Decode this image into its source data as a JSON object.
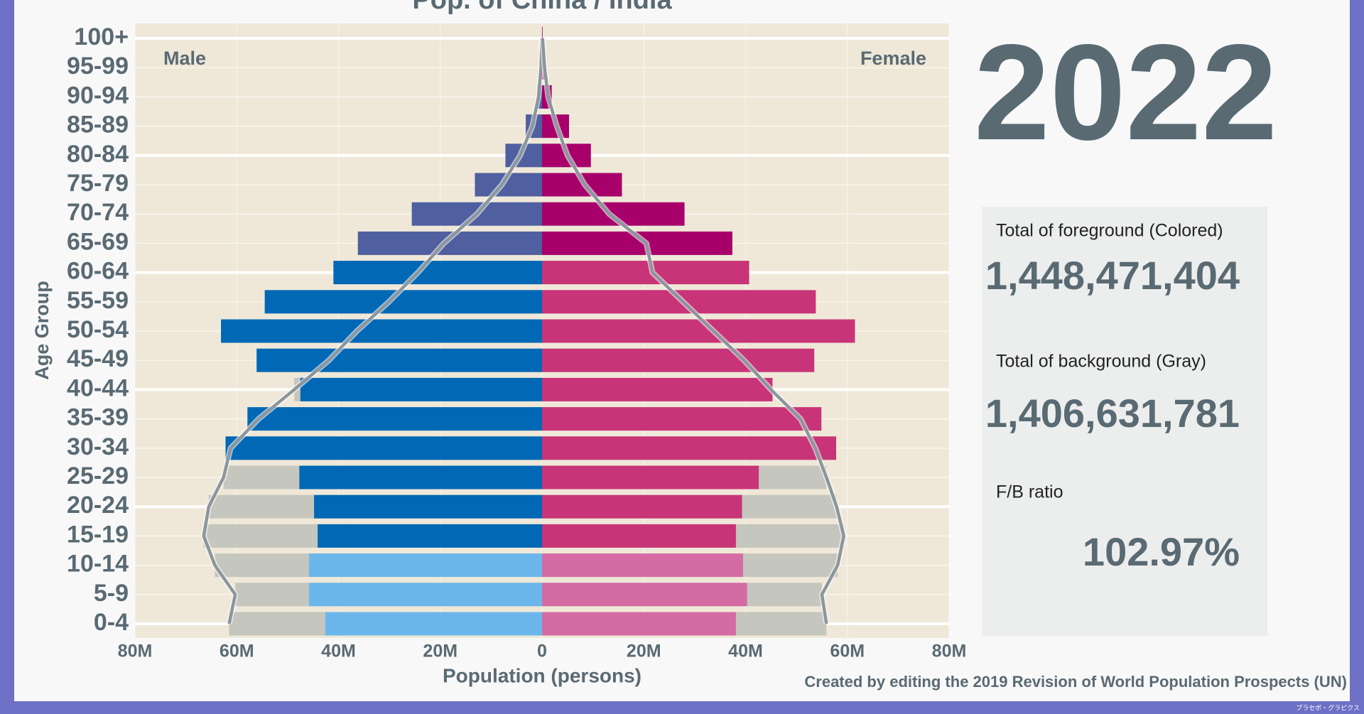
{
  "chart_data": {
    "type": "pyramid",
    "title": "Pop. of China / India",
    "categories": [
      "0-4",
      "5-9",
      "10-14",
      "15-19",
      "20-24",
      "25-29",
      "30-34",
      "35-39",
      "40-44",
      "45-49",
      "50-54",
      "55-59",
      "60-64",
      "65-69",
      "70-74",
      "75-79",
      "80-84",
      "85-89",
      "90-94",
      "95-99",
      "100+"
    ],
    "xlim": [
      -80000000,
      80000000
    ],
    "xticks": [
      {
        "value": -80000000,
        "label": "80M"
      },
      {
        "value": -60000000,
        "label": "60M"
      },
      {
        "value": -40000000,
        "label": "40M"
      },
      {
        "value": -20000000,
        "label": "20M"
      },
      0,
      {
        "value": 20000000,
        "label": "20M"
      },
      {
        "value": 40000000,
        "label": "40M"
      },
      {
        "value": 60000000,
        "label": "60M"
      },
      {
        "value": 80000000,
        "label": "80M"
      }
    ],
    "x_label": "Population (persons)",
    "y_label": "Age Group",
    "background_color": "#c5c6be",
    "outline_color": "#8c969c",
    "series": [
      {
        "name": "Male",
        "side": "left",
        "colors": [
          "#6bb7ec",
          "#6bb7ec",
          "#6bb7ec",
          "#0068b5",
          "#0068b5",
          "#0068b5",
          "#0068b5",
          "#0068b5",
          "#0068b5",
          "#0068b5",
          "#0068b5",
          "#0068b5",
          "#0068b5",
          "#4f5f9f",
          "#4f5f9f",
          "#4f5f9f",
          "#4f5f9f",
          "#4f5f9f",
          "#4f5f9f",
          "#4f5f9f",
          "#4f5f9f"
        ],
        "values": [
          42600000,
          45800000,
          45800000,
          44100000,
          44800000,
          47700000,
          62200000,
          57900000,
          47500000,
          56100000,
          63100000,
          54500000,
          41000000,
          36200000,
          25600000,
          13200000,
          7200000,
          3200000,
          900000,
          200000,
          10000
        ],
        "background_values": [
          61500000,
          60300000,
          64300000,
          66500000,
          65500000,
          62600000,
          61200000,
          55700000,
          48700000,
          41900000,
          36400000,
          30100000,
          24400000,
          19300000,
          12800000,
          7900000,
          4300000,
          1900000,
          700000,
          200000,
          30000
        ]
      },
      {
        "name": "Female",
        "side": "right",
        "colors": [
          "#d46ca3",
          "#d46ca3",
          "#d46ca3",
          "#c83478",
          "#c83478",
          "#c83478",
          "#c83478",
          "#c83478",
          "#c83478",
          "#c83478",
          "#c83478",
          "#c83478",
          "#c83478",
          "#a7006b",
          "#a7006b",
          "#a7006b",
          "#a7006b",
          "#a7006b",
          "#a7006b",
          "#a7006b",
          "#a7006b"
        ],
        "values": [
          38100000,
          40300000,
          39500000,
          38100000,
          39300000,
          42600000,
          57800000,
          54900000,
          45300000,
          53500000,
          61500000,
          53800000,
          40700000,
          37400000,
          28000000,
          15700000,
          9600000,
          5300000,
          1900000,
          500000,
          100000
        ],
        "background_values": [
          55900000,
          55000000,
          58100000,
          59300000,
          57900000,
          55900000,
          53700000,
          50800000,
          45000000,
          39700000,
          33700000,
          27700000,
          21700000,
          20500000,
          13200000,
          8400000,
          5000000,
          2900000,
          1200000,
          500000,
          100000
        ]
      }
    ]
  },
  "panel": {
    "year": "2022",
    "stats": [
      {
        "label": "Total of foreground (Colored)",
        "value": "1,448,471,404"
      },
      {
        "label": "Total of background (Gray)",
        "value": "1,406,631,781"
      },
      {
        "label": "F/B ratio",
        "value": "102.97%"
      }
    ]
  },
  "footer": {
    "credit": "Created by editing the 2019 Revision of World Population Prospects (UN)",
    "watermark": "プラセボ・グラピクス"
  }
}
